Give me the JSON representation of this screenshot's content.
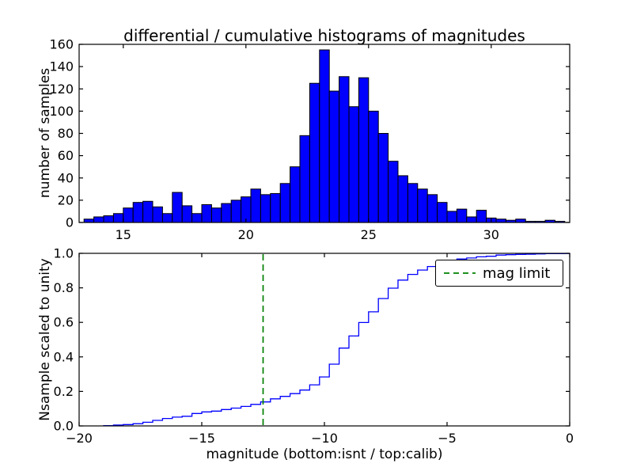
{
  "figure": {
    "background": "#ffffff"
  },
  "colors": {
    "hist_fill": "#0000ff",
    "hist_edge": "#000000",
    "cumulative_line": "#0000ff",
    "mag_limit_line": "#008000",
    "axis": "#000000"
  },
  "chart_data": [
    {
      "type": "bar",
      "role": "differential-histogram",
      "title": "differential / cumulative histograms of magnitudes",
      "ylabel": "number of samples",
      "xlim": [
        13.2,
        33.2
      ],
      "ylim": [
        0,
        160
      ],
      "xtick_vals": [
        15,
        20,
        25,
        30
      ],
      "xtick_labels": [
        "15",
        "20",
        "25",
        "30"
      ],
      "ytick_vals": [
        0,
        20,
        40,
        60,
        80,
        100,
        120,
        140,
        160
      ],
      "ytick_labels": [
        "0",
        "20",
        "40",
        "60",
        "80",
        "100",
        "120",
        "140",
        "160"
      ],
      "bin_start": 13.4,
      "bin_width": 0.4,
      "values": [
        3,
        5,
        6,
        8,
        13,
        18,
        19,
        14,
        8,
        27,
        15,
        8,
        16,
        13,
        17,
        20,
        23,
        30,
        25,
        26,
        35,
        50,
        78,
        125,
        155,
        118,
        131,
        104,
        130,
        100,
        80,
        55,
        42,
        35,
        30,
        25,
        18,
        10,
        12,
        5,
        11,
        4,
        3,
        2,
        3,
        1,
        1,
        2,
        1
      ],
      "grid": false
    },
    {
      "type": "step-line",
      "role": "cumulative-histogram",
      "xlabel": "magnitude (bottom:isnt / top:calib)",
      "ylabel": "Nsample scaled to unity",
      "xlim": [
        -20,
        0
      ],
      "ylim": [
        0,
        1
      ],
      "xtick_vals": [
        -20,
        -15,
        -10,
        -5,
        0
      ],
      "xtick_labels": [
        "−20",
        "−15",
        "−10",
        "−5",
        "0"
      ],
      "ytick_vals": [
        0,
        0.2,
        0.4,
        0.6,
        0.8,
        1.0
      ],
      "ytick_labels": [
        "0.0",
        "0.2",
        "0.4",
        "0.6",
        "0.8",
        "1.0"
      ],
      "bin_start": -19.0,
      "bin_width": 0.4,
      "cumulative": [
        0.002,
        0.005,
        0.008,
        0.013,
        0.021,
        0.032,
        0.043,
        0.051,
        0.056,
        0.072,
        0.081,
        0.086,
        0.095,
        0.103,
        0.113,
        0.125,
        0.139,
        0.157,
        0.171,
        0.187,
        0.208,
        0.238,
        0.284,
        0.358,
        0.451,
        0.521,
        0.599,
        0.661,
        0.738,
        0.798,
        0.845,
        0.878,
        0.903,
        0.924,
        0.942,
        0.957,
        0.967,
        0.973,
        0.98,
        0.983,
        0.99,
        0.992,
        0.994,
        0.995,
        0.997,
        0.998,
        0.998,
        0.999,
        1.0
      ],
      "mag_limit_x": -12.5,
      "legend": {
        "label": "mag limit",
        "position": "upper right"
      },
      "grid": false
    }
  ]
}
